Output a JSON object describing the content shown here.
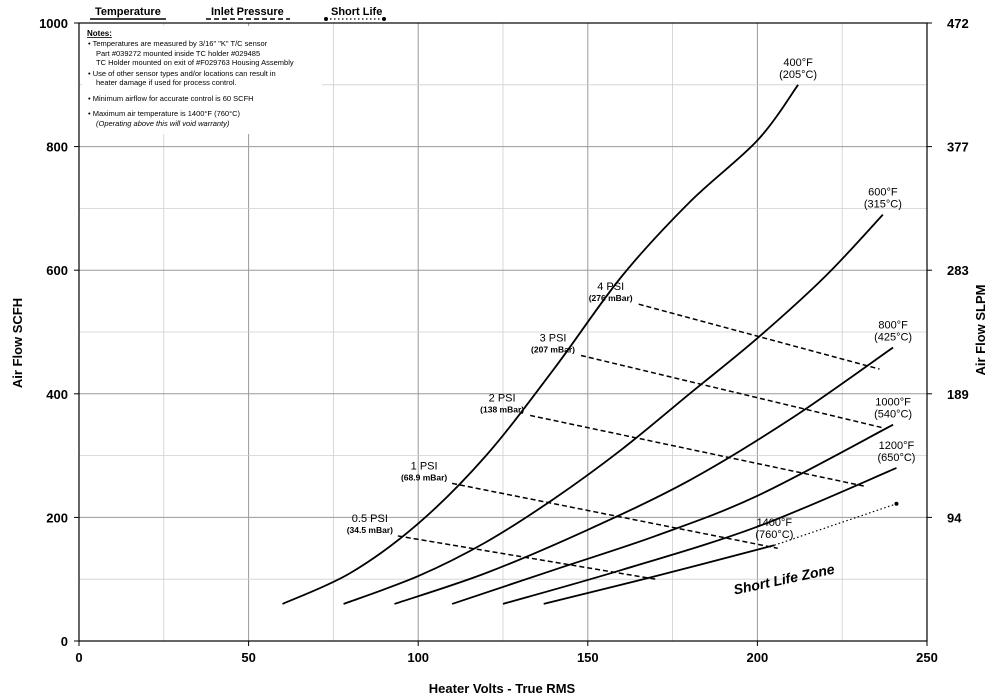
{
  "chart_data": {
    "type": "line",
    "xlabel": "Heater Volts - True RMS",
    "ylabel": "Air Flow SCFH",
    "y2label": "Air Flow SLPM",
    "xlim": [
      0,
      250
    ],
    "ylim": [
      0,
      1000
    ],
    "x_ticks": [
      0,
      50,
      100,
      150,
      200,
      250
    ],
    "y_ticks": [
      0,
      200,
      400,
      600,
      800,
      1000
    ],
    "y2_ticks": [
      {
        "at": 200,
        "label": "94"
      },
      {
        "at": 400,
        "label": "189"
      },
      {
        "at": 600,
        "label": "283"
      },
      {
        "at": 800,
        "label": "377"
      },
      {
        "at": 1000,
        "label": "472"
      }
    ],
    "grid": true,
    "legend": {
      "placement": "top",
      "items": [
        {
          "label": "Temperature",
          "style": "solid"
        },
        {
          "label": "Inlet Pressure",
          "style": "dashed"
        },
        {
          "label": "Short Life",
          "style": "dotted"
        }
      ]
    },
    "temperature_curves": [
      {
        "label1": "400°F",
        "label2": "(205°C)",
        "points": [
          [
            60,
            60
          ],
          [
            80,
            110
          ],
          [
            100,
            190
          ],
          [
            120,
            300
          ],
          [
            140,
            440
          ],
          [
            160,
            590
          ],
          [
            180,
            710
          ],
          [
            200,
            810
          ],
          [
            212,
            900
          ]
        ]
      },
      {
        "label1": "600°F",
        "label2": "(315°C)",
        "points": [
          [
            78,
            60
          ],
          [
            100,
            105
          ],
          [
            120,
            160
          ],
          [
            140,
            230
          ],
          [
            160,
            310
          ],
          [
            180,
            400
          ],
          [
            200,
            490
          ],
          [
            220,
            590
          ],
          [
            237,
            690
          ]
        ]
      },
      {
        "label1": "800°F",
        "label2": "(425°C)",
        "points": [
          [
            93,
            60
          ],
          [
            120,
            110
          ],
          [
            150,
            180
          ],
          [
            180,
            260
          ],
          [
            210,
            360
          ],
          [
            240,
            475
          ]
        ]
      },
      {
        "label1": "1000°F",
        "label2": "(540°C)",
        "points": [
          [
            110,
            60
          ],
          [
            140,
            115
          ],
          [
            170,
            170
          ],
          [
            200,
            235
          ],
          [
            240,
            350
          ]
        ]
      },
      {
        "label1": "1200°F",
        "label2": "(650°C)",
        "points": [
          [
            125,
            60
          ],
          [
            160,
            115
          ],
          [
            200,
            185
          ],
          [
            241,
            280
          ]
        ]
      },
      {
        "label1": "1400°F",
        "label2": "(760°C)",
        "points": [
          [
            137,
            60
          ],
          [
            170,
            105
          ],
          [
            205,
            155
          ]
        ]
      }
    ],
    "pressure_lines": [
      {
        "label": "0.5 PSI",
        "sub": "(34.5 mBar)",
        "points": [
          [
            94,
            170
          ],
          [
            170,
            100
          ]
        ]
      },
      {
        "label": "1 PSI",
        "sub": "(68.9 mBar)",
        "points": [
          [
            110,
            255
          ],
          [
            206,
            150
          ]
        ]
      },
      {
        "label": "2 PSI",
        "sub": "(138 mBar)",
        "points": [
          [
            133,
            365
          ],
          [
            232,
            250
          ]
        ]
      },
      {
        "label": "3 PSI",
        "sub": "(207 mBar)",
        "points": [
          [
            148,
            462
          ],
          [
            237,
            345
          ]
        ]
      },
      {
        "label": "4 PSI",
        "sub": "(276 mBar)",
        "points": [
          [
            165,
            545
          ],
          [
            236,
            440
          ]
        ]
      }
    ],
    "short_life_line": {
      "points": [
        [
          205,
          155
        ],
        [
          241,
          222
        ]
      ]
    },
    "annotation_zone": "Short Life Zone",
    "notes": {
      "title": "Notes:",
      "lines": [
        "• Temperatures are measured by 3/16\" \"K\" T/C sensor",
        "Part #039272 mounted inside TC holder #029485",
        "TC Holder mounted on exit of #F029763 Housing Assembly",
        "• Use of other sensor types and/or locations can result in",
        "heater damage if used for process control.",
        "• Minimum airflow for accurate control is 60 SCFH",
        "• Maximum air temperature is 1400°F (760°C)",
        "(Operating above this will void warranty)"
      ]
    }
  }
}
